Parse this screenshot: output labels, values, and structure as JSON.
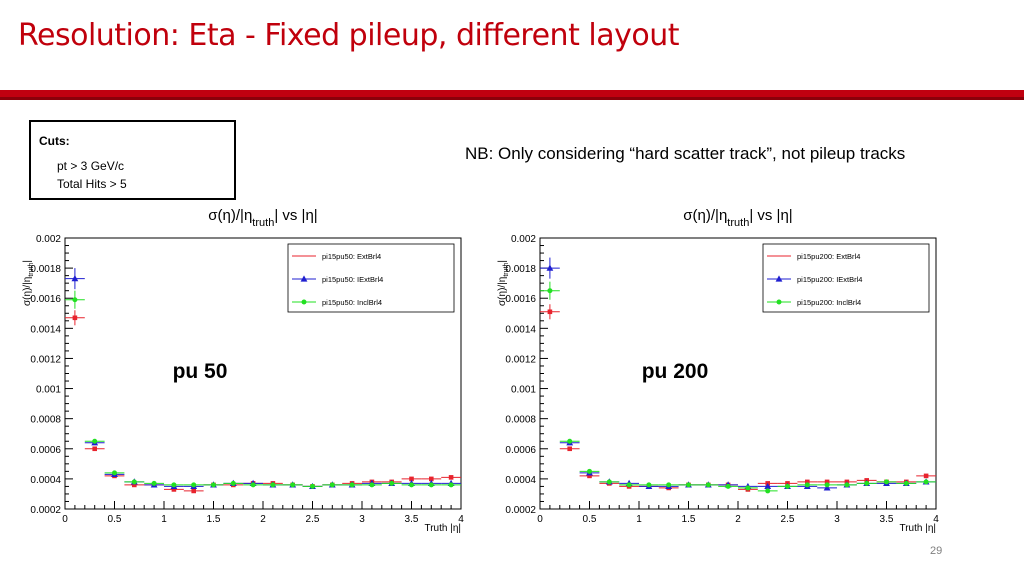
{
  "slide": {
    "title": "Resolution: Eta - Fixed pileup, different layout",
    "page_number": "29"
  },
  "cuts": {
    "title": "Cuts:",
    "lines": [
      "pt > 3 GeV/c",
      "Total Hits > 5"
    ]
  },
  "note": "NB: Only considering “hard scatter track”, not pileup tracks",
  "colors": {
    "title": "#c0000c",
    "rule": "#c00010",
    "ExtBrl4": "#e8232d",
    "IExtBrl4": "#1f1fd0",
    "InclBrl4": "#22e022"
  },
  "chart_data": [
    {
      "type": "scatter",
      "title": "σ(η)/|η_truth| vs |η|",
      "title_parts": {
        "a": "σ(η)/|η",
        "sub": "truth",
        "b": "| vs |η|"
      },
      "ylabel": "σ(η)/|η_truth|",
      "ylabel_parts": {
        "a": "σ(η)/|η",
        "sub": "truth",
        "b": "|"
      },
      "xlabel": "Truth |η|",
      "xlim": [
        0,
        4
      ],
      "ylim": [
        0.0002,
        0.002
      ],
      "xticks": [
        "0",
        "0.5",
        "1",
        "1.5",
        "2",
        "2.5",
        "3",
        "3.5",
        "4"
      ],
      "yticks": [
        "0.0002",
        "0.0004",
        "0.0006",
        "0.0008",
        "0.001",
        "0.0012",
        "0.0014",
        "0.0016",
        "0.0018",
        "0.002"
      ],
      "annotation": "pu 50",
      "legend_position": "top-right",
      "grid": false,
      "x": [
        0.1,
        0.3,
        0.5,
        0.7,
        0.9,
        1.1,
        1.3,
        1.5,
        1.7,
        1.9,
        2.1,
        2.3,
        2.5,
        2.7,
        2.9,
        3.1,
        3.3,
        3.5,
        3.7,
        3.9
      ],
      "series": [
        {
          "name": "pi15pu50: ExtBrl4",
          "marker": "square",
          "color": "#e8232d",
          "values": [
            0.00147,
            0.0006,
            0.00042,
            0.00036,
            0.00036,
            0.00033,
            0.00032,
            0.00036,
            0.00036,
            0.00037,
            0.00037,
            0.00036,
            0.00035,
            0.00036,
            0.00037,
            0.00038,
            0.00038,
            0.0004,
            0.0004,
            0.00041
          ],
          "errors": [
            5e-05,
            1e-05,
            1e-05,
            1e-05,
            1e-05,
            1e-05,
            1e-05,
            1e-05,
            1e-05,
            1e-05,
            1e-05,
            1e-05,
            1e-05,
            1e-05,
            1e-05,
            1e-05,
            1e-05,
            1e-05,
            1e-05,
            1e-05
          ]
        },
        {
          "name": "pi15pu50: IExtBrl4",
          "marker": "triangle",
          "color": "#1f1fd0",
          "values": [
            0.00173,
            0.00064,
            0.00043,
            0.00038,
            0.00036,
            0.00035,
            0.00035,
            0.00036,
            0.00037,
            0.00037,
            0.00036,
            0.00036,
            0.00035,
            0.00036,
            0.00036,
            0.00037,
            0.00037,
            0.00037,
            0.00037,
            0.00037
          ],
          "errors": [
            7e-05,
            1e-05,
            1e-05,
            1e-05,
            1e-05,
            1e-05,
            1e-05,
            1e-05,
            1e-05,
            1e-05,
            1e-05,
            1e-05,
            1e-05,
            1e-05,
            1e-05,
            1e-05,
            1e-05,
            1e-05,
            1e-05,
            1e-05
          ]
        },
        {
          "name": "pi15pu50: InclBrl4",
          "marker": "circle",
          "color": "#22e022",
          "values": [
            0.00159,
            0.00065,
            0.00044,
            0.00038,
            0.00037,
            0.00036,
            0.00036,
            0.00036,
            0.00037,
            0.00036,
            0.00036,
            0.00036,
            0.00035,
            0.00036,
            0.00036,
            0.00036,
            0.00037,
            0.00036,
            0.00036,
            0.00036
          ],
          "errors": [
            6e-05,
            1e-05,
            1e-05,
            1e-05,
            1e-05,
            1e-05,
            1e-05,
            1e-05,
            1e-05,
            1e-05,
            1e-05,
            1e-05,
            1e-05,
            1e-05,
            1e-05,
            1e-05,
            1e-05,
            1e-05,
            1e-05,
            1e-05
          ]
        }
      ]
    },
    {
      "type": "scatter",
      "title": "σ(η)/|η_truth| vs |η|",
      "title_parts": {
        "a": "σ(η)/|η",
        "sub": "truth",
        "b": "| vs |η|"
      },
      "ylabel": "σ(η)/|η_truth|",
      "ylabel_parts": {
        "a": "σ(η)/|η",
        "sub": "truth",
        "b": "|"
      },
      "xlabel": "Truth |η|",
      "xlim": [
        0,
        4
      ],
      "ylim": [
        0.0002,
        0.002
      ],
      "xticks": [
        "0",
        "0.5",
        "1",
        "1.5",
        "2",
        "2.5",
        "3",
        "3.5",
        "4"
      ],
      "yticks": [
        "0.0002",
        "0.0004",
        "0.0006",
        "0.0008",
        "0.001",
        "0.0012",
        "0.0014",
        "0.0016",
        "0.0018",
        "0.002"
      ],
      "annotation": "pu 200",
      "legend_position": "top-right",
      "grid": false,
      "x": [
        0.1,
        0.3,
        0.5,
        0.7,
        0.9,
        1.1,
        1.3,
        1.5,
        1.7,
        1.9,
        2.1,
        2.3,
        2.5,
        2.7,
        2.9,
        3.1,
        3.3,
        3.5,
        3.7,
        3.9
      ],
      "series": [
        {
          "name": "pi15pu200: ExtBrl4",
          "marker": "square",
          "color": "#e8232d",
          "values": [
            0.00151,
            0.0006,
            0.00042,
            0.00037,
            0.00035,
            0.00035,
            0.00034,
            0.00036,
            0.00036,
            0.00036,
            0.00033,
            0.00037,
            0.00037,
            0.00038,
            0.00038,
            0.00038,
            0.00039,
            0.00038,
            0.00038,
            0.00042
          ],
          "errors": [
            5e-05,
            1e-05,
            1e-05,
            1e-05,
            1e-05,
            1e-05,
            1e-05,
            1e-05,
            1e-05,
            1e-05,
            1e-05,
            1e-05,
            1e-05,
            1e-05,
            1e-05,
            1e-05,
            1e-05,
            1e-05,
            1e-05,
            1e-05
          ]
        },
        {
          "name": "pi15pu200: IExtBrl4",
          "marker": "triangle",
          "color": "#1f1fd0",
          "values": [
            0.0018,
            0.00064,
            0.00044,
            0.00038,
            0.00037,
            0.00035,
            0.00035,
            0.00036,
            0.00036,
            0.00036,
            0.00035,
            0.00035,
            0.00035,
            0.00035,
            0.00034,
            0.00036,
            0.00037,
            0.00037,
            0.00037,
            0.00038
          ],
          "errors": [
            7e-05,
            1e-05,
            1e-05,
            1e-05,
            1e-05,
            1e-05,
            1e-05,
            1e-05,
            1e-05,
            1e-05,
            1e-05,
            1e-05,
            1e-05,
            1e-05,
            1e-05,
            1e-05,
            1e-05,
            1e-05,
            1e-05,
            1e-05
          ]
        },
        {
          "name": "pi15pu200: InclBrl4",
          "marker": "circle",
          "color": "#22e022",
          "values": [
            0.00165,
            0.00065,
            0.00045,
            0.00038,
            0.00036,
            0.00036,
            0.00036,
            0.00036,
            0.00036,
            0.00035,
            0.00034,
            0.00032,
            0.00035,
            0.00036,
            0.00036,
            0.00036,
            0.00037,
            0.00038,
            0.00037,
            0.00038
          ],
          "errors": [
            6e-05,
            1e-05,
            1e-05,
            1e-05,
            1e-05,
            1e-05,
            1e-05,
            1e-05,
            1e-05,
            1e-05,
            1e-05,
            1e-05,
            1e-05,
            1e-05,
            1e-05,
            1e-05,
            1e-05,
            1e-05,
            1e-05,
            1e-05
          ]
        }
      ]
    }
  ]
}
